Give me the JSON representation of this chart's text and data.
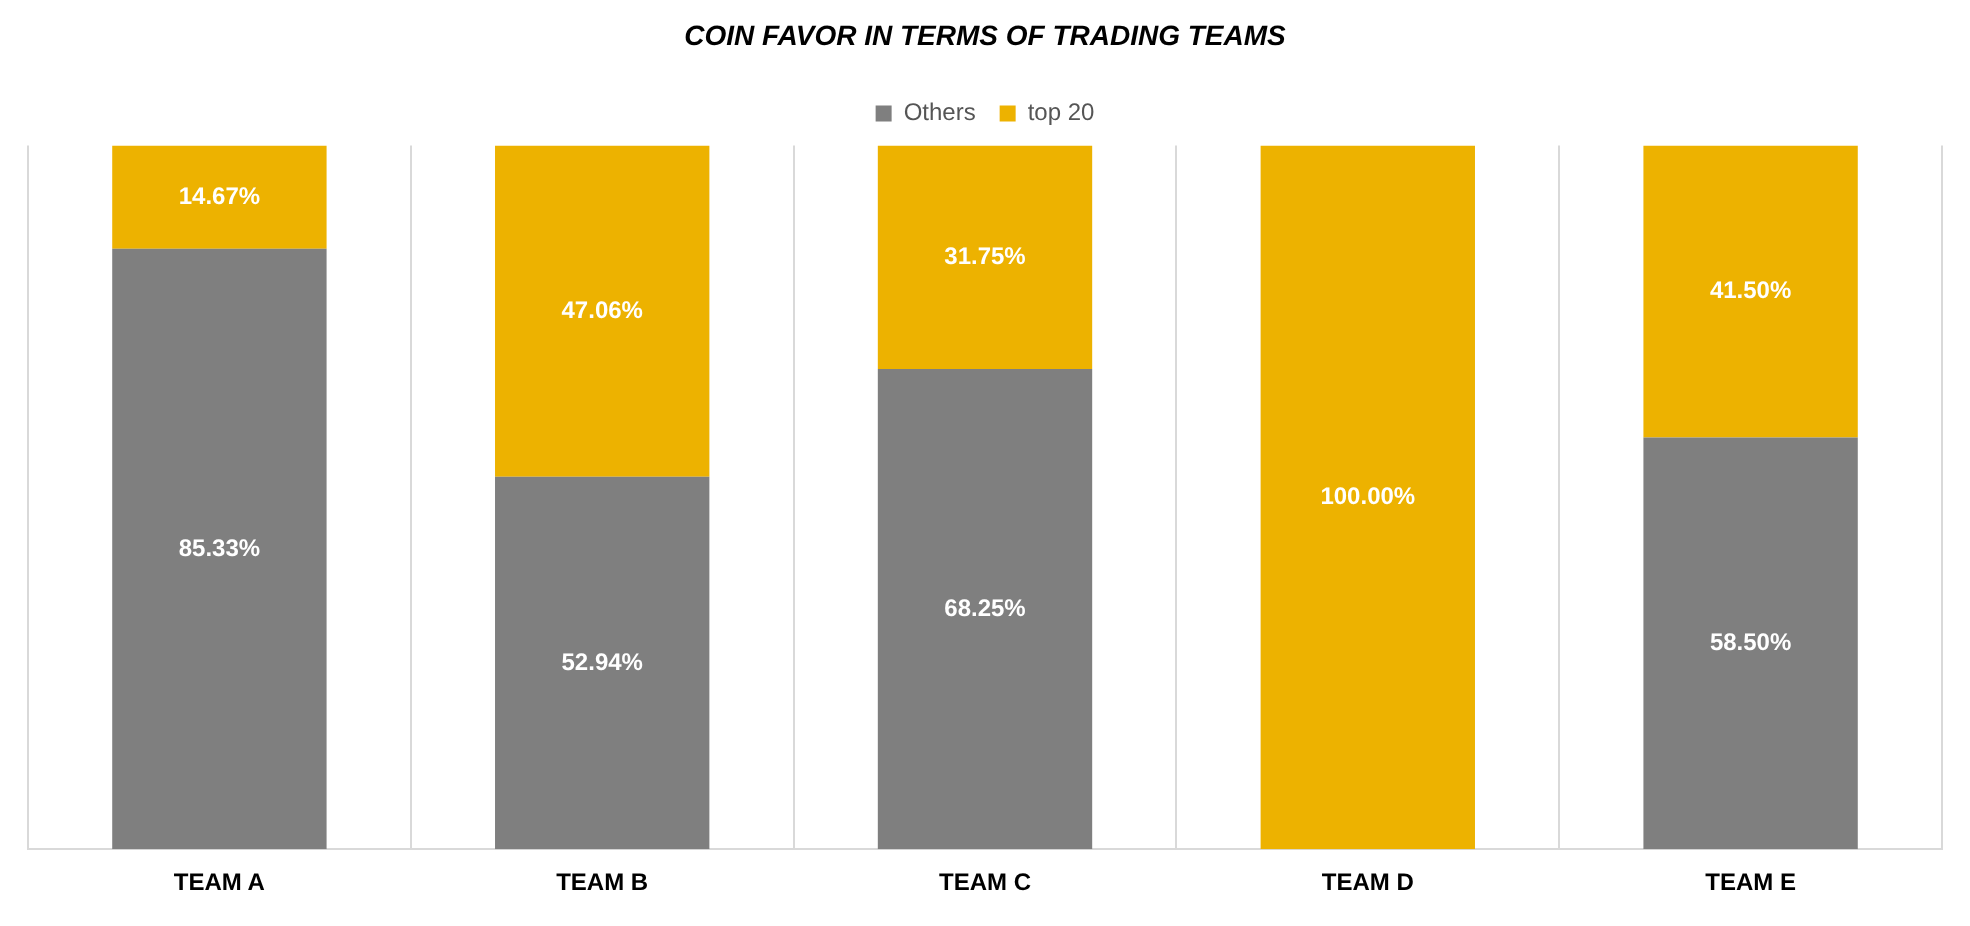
{
  "chart_data": {
    "type": "bar",
    "title": "COIN FAVOR IN TERMS OF TRADING TEAMS",
    "categories": [
      "TEAM A",
      "TEAM B",
      "TEAM C",
      "TEAM D",
      "TEAM E"
    ],
    "series": [
      {
        "name": "Others",
        "color": "#7f7f7f",
        "values": [
          85.33,
          52.94,
          68.25,
          0,
          58.5
        ],
        "value_labels": [
          "85.33%",
          "52.94%",
          "68.25%",
          null,
          "58.50%"
        ]
      },
      {
        "name": "top 20",
        "color": "#edb200",
        "values": [
          14.67,
          47.06,
          31.75,
          100,
          41.5
        ],
        "value_labels": [
          "14.67%",
          "47.06%",
          "31.75%",
          "100.00%",
          "41.50%"
        ]
      }
    ],
    "stacked": true,
    "ylim": [
      0,
      100
    ],
    "tick_labels": "x",
    "grid": "x",
    "legend": "top"
  }
}
